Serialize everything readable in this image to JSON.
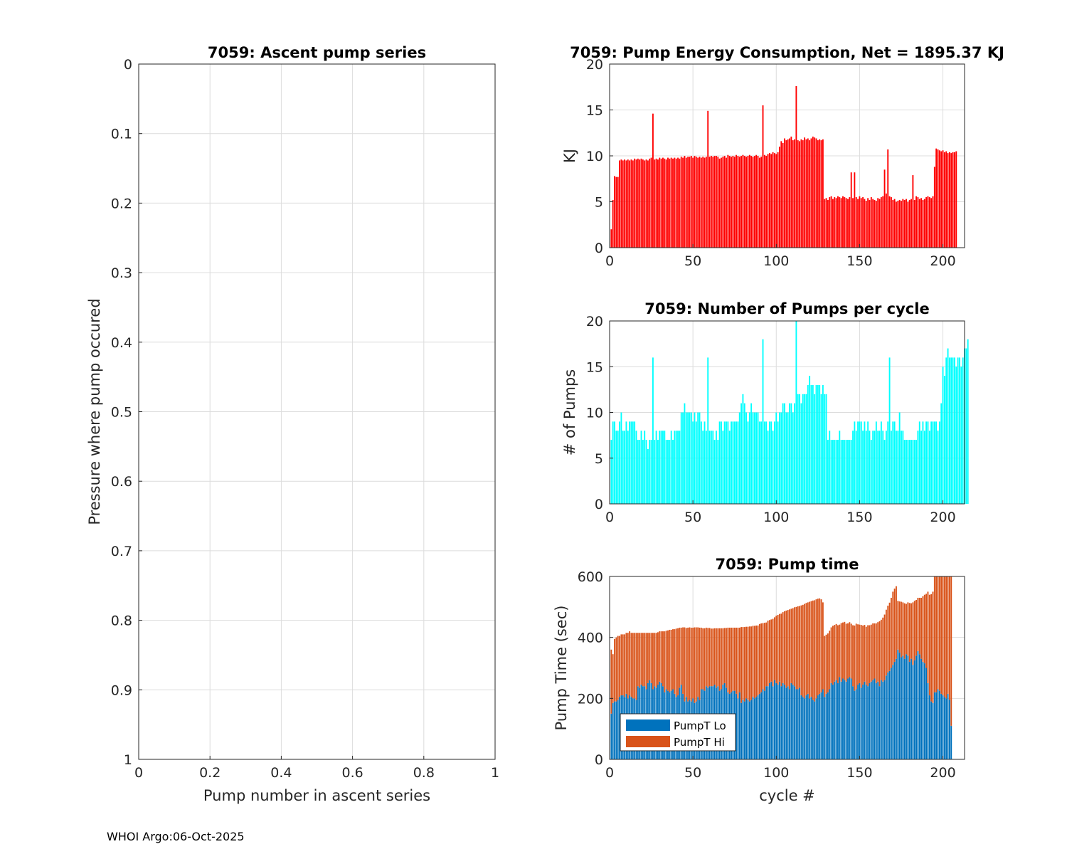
{
  "footer": "WHOI Argo:06-Oct-2025",
  "chart_data": [
    {
      "id": "ascent",
      "type": "scatter",
      "title": "7059: Ascent pump series",
      "xlabel": "Pump number in ascent series",
      "ylabel": "Pressure where pump occured",
      "xlim": [
        0,
        1
      ],
      "ylim": [
        0,
        1
      ],
      "yreversed": true,
      "xticks": [
        "0",
        "0.2",
        "0.4",
        "0.6",
        "0.8",
        "1"
      ],
      "yticks": [
        "0",
        "0.1",
        "0.2",
        "0.3",
        "0.4",
        "0.5",
        "0.6",
        "0.7",
        "0.8",
        "0.9",
        "1"
      ],
      "grid": true,
      "x": [],
      "y": []
    },
    {
      "id": "energy",
      "type": "bar",
      "title": "7059: Pump Energy Consumption,  Net = 1895.37 KJ",
      "xlabel": "",
      "ylabel": "KJ",
      "xlim": [
        0,
        213
      ],
      "ylim": [
        0,
        20
      ],
      "xticks": [
        "0",
        "50",
        "100",
        "150",
        "200"
      ],
      "yticks": [
        "0",
        "5",
        "10",
        "15",
        "20"
      ],
      "grid": true,
      "color": "#ff0000",
      "values": [
        2.0,
        5.2,
        7.8,
        7.7,
        7.7,
        9.5,
        9.6,
        9.5,
        9.6,
        9.5,
        9.6,
        9.5,
        9.6,
        9.5,
        9.7,
        9.6,
        9.7,
        9.6,
        9.7,
        9.6,
        9.5,
        9.6,
        9.5,
        9.7,
        9.8,
        14.6,
        9.6,
        9.7,
        9.6,
        9.8,
        9.7,
        9.8,
        9.7,
        9.6,
        9.8,
        9.7,
        9.8,
        9.7,
        9.8,
        9.7,
        9.8,
        9.7,
        9.9,
        9.8,
        10.0,
        9.8,
        9.9,
        9.9,
        10.0,
        9.8,
        10.0,
        9.9,
        9.8,
        9.9,
        9.8,
        9.9,
        9.8,
        9.9,
        14.9,
        9.9,
        10.0,
        9.9,
        10.0,
        10.0,
        9.9,
        9.7,
        9.8,
        9.9,
        10.0,
        9.8,
        10.1,
        10.0,
        9.9,
        10.0,
        9.9,
        10.1,
        10.0,
        9.9,
        10.0,
        10.1,
        10.0,
        9.9,
        10.0,
        10.1,
        10.0,
        9.9,
        10.0,
        10.1,
        10.0,
        9.8,
        9.9,
        15.5,
        10.1,
        10.0,
        10.2,
        10.3,
        10.2,
        10.4,
        10.3,
        10.2,
        10.4,
        11.0,
        11.6,
        11.4,
        11.9,
        11.7,
        11.8,
        11.9,
        12.1,
        11.7,
        11.8,
        17.6,
        11.7,
        11.6,
        11.8,
        11.7,
        12.0,
        11.8,
        11.9,
        11.7,
        11.9,
        12.1,
        12.0,
        11.9,
        11.7,
        11.8,
        11.7,
        11.8,
        5.3,
        5.4,
        5.2,
        5.5,
        5.6,
        5.3,
        5.5,
        5.4,
        5.6,
        5.5,
        5.4,
        5.6,
        5.5,
        5.4,
        5.3,
        5.5,
        8.2,
        5.4,
        8.2,
        5.5,
        5.3,
        5.6,
        5.4,
        5.5,
        5.3,
        5.1,
        5.4,
        5.2,
        5.5,
        5.3,
        5.2,
        5.1,
        5.4,
        5.3,
        5.5,
        5.6,
        8.5,
        5.9,
        10.7,
        5.6,
        5.5,
        5.2,
        5.3,
        5.0,
        5.1,
        5.2,
        5.1,
        5.3,
        5.2,
        5.3,
        5.0,
        5.2,
        5.3,
        7.9,
        5.2,
        5.6,
        5.5,
        5.3,
        5.4,
        5.2,
        5.3,
        5.5,
        5.6,
        5.5,
        5.4,
        5.6,
        8.8,
        10.8,
        10.7,
        10.6,
        10.5,
        10.6,
        10.4,
        10.5,
        10.3,
        10.4,
        10.3,
        10.4,
        10.4,
        10.5
      ]
    },
    {
      "id": "npumps",
      "type": "bar",
      "title": "7059: Number of Pumps per cycle",
      "xlabel": "",
      "ylabel": "# of Pumps",
      "xlim": [
        0,
        213
      ],
      "ylim": [
        0,
        20
      ],
      "xticks": [
        "0",
        "50",
        "100",
        "150",
        "200"
      ],
      "yticks": [
        "0",
        "5",
        "10",
        "15",
        "20"
      ],
      "grid": true,
      "color": "#00ffff",
      "values": [
        7,
        9,
        9,
        8,
        8,
        9,
        10,
        8,
        8,
        9,
        8,
        9,
        9,
        9,
        9,
        8,
        7,
        7,
        8,
        7,
        8,
        7,
        6,
        7,
        7,
        16,
        7,
        8,
        7,
        8,
        8,
        8,
        8,
        7,
        7,
        7,
        8,
        7,
        8,
        8,
        8,
        8,
        10,
        10,
        11,
        10,
        10,
        10,
        10,
        9,
        10,
        9,
        10,
        10,
        9,
        8,
        9,
        8,
        16,
        8,
        8,
        8,
        7,
        8,
        7,
        9,
        9,
        8,
        9,
        9,
        9,
        8,
        9,
        9,
        9,
        9,
        9,
        10,
        11,
        12,
        11,
        10,
        9,
        10,
        11,
        10,
        10,
        10,
        10,
        9,
        9,
        18,
        9,
        9,
        8,
        9,
        9,
        8,
        9,
        10,
        9,
        10,
        10,
        11,
        11,
        10,
        10,
        11,
        11,
        10,
        11,
        20,
        12,
        12,
        11,
        12,
        12,
        12,
        13,
        14,
        13,
        13,
        12,
        13,
        13,
        13,
        12,
        13,
        12,
        12,
        7,
        8,
        7,
        7,
        7,
        7,
        7,
        8,
        7,
        7,
        7,
        7,
        7,
        7,
        7,
        8,
        9,
        8,
        9,
        9,
        9,
        8,
        9,
        8,
        9,
        8,
        7,
        8,
        8,
        9,
        8,
        8,
        9,
        8,
        7,
        8,
        9,
        16,
        8,
        9,
        9,
        8,
        8,
        10,
        8,
        8,
        7,
        7,
        7,
        7,
        7,
        7,
        7,
        7,
        8,
        9,
        8,
        9,
        8,
        9,
        9,
        8,
        9,
        9,
        9,
        9,
        8,
        9,
        11,
        15,
        14,
        16,
        17,
        16,
        16,
        16,
        16,
        15,
        16,
        16,
        15,
        16,
        17,
        17,
        18
      ]
    },
    {
      "id": "pumptime",
      "type": "bar",
      "stacked": true,
      "title": "7059: Pump time",
      "xlabel": "cycle #",
      "ylabel": "Pump Time (sec)",
      "xlim": [
        0,
        213
      ],
      "ylim": [
        0,
        600
      ],
      "xticks": [
        "0",
        "50",
        "100",
        "150",
        "200"
      ],
      "yticks": [
        "0",
        "200",
        "400",
        "600"
      ],
      "grid": true,
      "legend": "bottom-left",
      "series": [
        {
          "name": "PumpT Lo",
          "color": "#0072bd",
          "values": [
            150,
            185,
            190,
            190,
            195,
            205,
            210,
            210,
            205,
            215,
            200,
            210,
            205,
            200,
            200,
            195,
            240,
            235,
            245,
            240,
            240,
            230,
            250,
            260,
            250,
            230,
            240,
            235,
            245,
            255,
            250,
            240,
            220,
            230,
            225,
            220,
            225,
            230,
            215,
            205,
            210,
            235,
            245,
            215,
            190,
            205,
            190,
            195,
            190,
            200,
            185,
            190,
            205,
            195,
            230,
            230,
            225,
            240,
            235,
            240,
            240,
            240,
            245,
            235,
            240,
            225,
            230,
            245,
            250,
            235,
            220,
            215,
            220,
            225,
            225,
            215,
            200,
            220,
            185,
            195,
            190,
            200,
            195,
            190,
            195,
            205,
            200,
            205,
            210,
            215,
            220,
            230,
            225,
            240,
            240,
            250,
            255,
            240,
            260,
            250,
            245,
            255,
            240,
            250,
            245,
            235,
            240,
            230,
            250,
            245,
            240,
            230,
            230,
            235,
            210,
            205,
            200,
            210,
            215,
            200,
            205,
            195,
            190,
            200,
            210,
            215,
            220,
            230,
            205,
            215,
            220,
            230,
            250,
            245,
            255,
            260,
            250,
            270,
            255,
            265,
            260,
            255,
            265,
            270,
            265,
            240,
            225,
            230,
            245,
            250,
            235,
            245,
            255,
            245,
            240,
            250,
            255,
            260,
            265,
            250,
            255,
            240,
            260,
            255,
            260,
            275,
            285,
            290,
            300,
            310,
            320,
            330,
            360,
            350,
            335,
            340,
            330,
            345,
            340,
            320,
            330,
            310,
            325,
            340,
            355,
            345,
            330,
            320,
            315,
            300,
            250,
            210,
            190,
            185,
            220,
            220,
            230,
            225,
            215,
            210,
            205,
            200,
            215,
            195,
            110
          ]
        },
        {
          "name": "PumpT Hi",
          "color": "#d95319",
          "values": [
            210,
            160,
            205,
            210,
            210,
            200,
            200,
            200,
            205,
            200,
            215,
            210,
            210,
            215,
            215,
            220,
            175,
            180,
            170,
            175,
            175,
            185,
            165,
            155,
            165,
            185,
            175,
            180,
            172,
            165,
            170,
            180,
            200,
            192,
            198,
            205,
            200,
            197,
            212,
            224,
            220,
            197,
            187,
            218,
            243,
            226,
            242,
            238,
            242,
            232,
            248,
            243,
            228,
            237,
            202,
            200,
            205,
            192,
            196,
            191,
            189,
            189,
            185,
            195,
            190,
            205,
            200,
            185,
            181,
            196,
            212,
            217,
            212,
            207,
            207,
            217,
            232,
            212,
            249,
            239,
            244,
            235,
            240,
            246,
            241,
            233,
            238,
            234,
            229,
            229,
            226,
            217,
            223,
            209,
            215,
            207,
            204,
            221,
            206,
            221,
            229,
            222,
            238,
            233,
            241,
            253,
            250,
            262,
            244,
            251,
            259,
            270,
            272,
            268,
            295,
            302,
            310,
            303,
            300,
            317,
            314,
            326,
            332,
            325,
            317,
            313,
            305,
            285,
            200,
            194,
            193,
            192,
            183,
            193,
            186,
            184,
            190,
            172,
            192,
            184,
            191,
            190,
            181,
            180,
            180,
            200,
            214,
            215,
            198,
            192,
            206,
            194,
            186,
            190,
            200,
            190,
            187,
            186,
            181,
            196,
            195,
            213,
            198,
            210,
            215,
            216,
            219,
            224,
            230,
            240,
            240,
            238,
            160,
            168,
            182,
            175,
            182,
            165,
            175,
            193,
            182,
            205,
            195,
            183,
            175,
            185,
            200,
            215,
            225,
            243,
            300,
            330,
            352,
            365,
            380,
            380,
            370,
            375,
            385,
            390,
            395,
            400,
            385,
            405,
            490
          ]
        }
      ]
    }
  ]
}
